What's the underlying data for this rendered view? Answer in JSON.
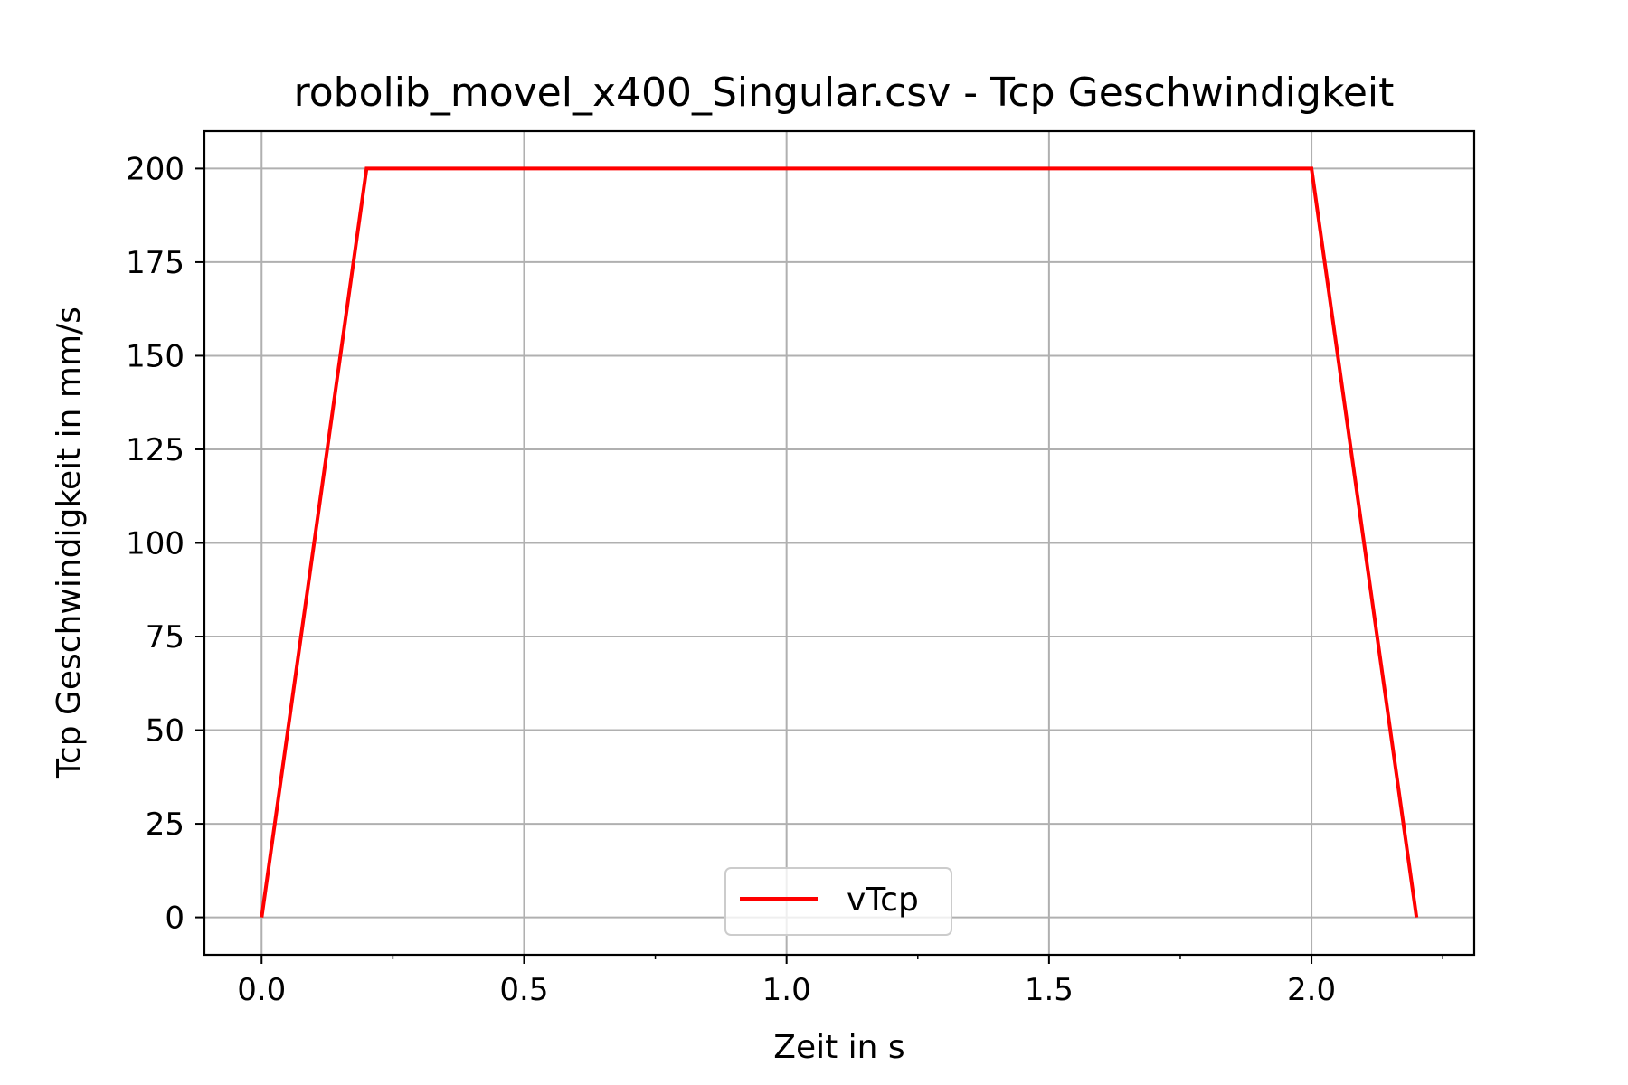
{
  "chart_data": {
    "type": "line",
    "title": "robolib_movel_x400_Singular.csv - Tcp Geschwindigkeit",
    "xlabel": "Zeit in s",
    "ylabel": "Tcp Geschwindigkeit in mm/s",
    "xlim": [
      -0.109,
      2.31
    ],
    "ylim": [
      -10,
      210
    ],
    "xticks": [
      "0.0",
      "0.5",
      "1.0",
      "1.5",
      "2.0"
    ],
    "xtick_values": [
      0,
      0.5,
      1.0,
      1.5,
      2.0
    ],
    "xminor_ticks": [
      0.25,
      0.75,
      1.25,
      1.75,
      2.25
    ],
    "yticks": [
      "0",
      "25",
      "50",
      "75",
      "100",
      "125",
      "150",
      "175",
      "200"
    ],
    "ytick_values": [
      0,
      25,
      50,
      75,
      100,
      125,
      150,
      175,
      200
    ],
    "grid": true,
    "legend_position": "lower center",
    "series": [
      {
        "name": "vTcp",
        "color": "#ff0000",
        "x": [
          0.0,
          0.2,
          2.0,
          2.2
        ],
        "y": [
          0,
          200,
          200,
          0
        ]
      }
    ]
  }
}
